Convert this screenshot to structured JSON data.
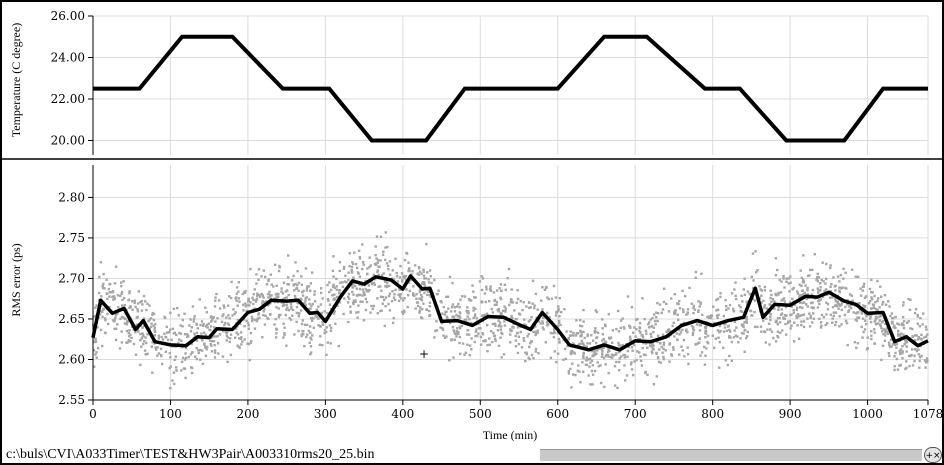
{
  "status_bar": {
    "file_path": "c:\\buls\\CVI\\A033Timer\\TEST&HW3Pair\\A003310rms20_25.bin"
  },
  "zoom_button": {
    "icon": "zoom-icon",
    "label": "+×"
  },
  "chart_data": [
    {
      "type": "line",
      "ylabel": "Temperature (C degree)",
      "ylim": [
        19.3,
        26.0
      ],
      "yticks": [
        "26.00",
        "24.00",
        "22.00",
        "20.00"
      ],
      "grid": true,
      "series": [
        {
          "values_x": [
            0,
            60,
            115,
            180,
            245,
            305,
            360,
            430,
            480,
            600,
            660,
            715,
            790,
            835,
            895,
            970,
            1020,
            1078
          ],
          "values_y": [
            22.5,
            22.5,
            25.0,
            25.0,
            22.5,
            22.5,
            20.0,
            20.0,
            22.5,
            22.5,
            25.0,
            25.0,
            22.5,
            22.5,
            20.0,
            20.0,
            22.5,
            22.5
          ]
        }
      ]
    },
    {
      "type": "scatter",
      "xlabel": "Time (min)",
      "ylabel": "RMS error (ps)",
      "xlim": [
        0,
        1078
      ],
      "ylim": [
        2.55,
        2.84
      ],
      "xticks": [
        "0",
        "100",
        "200",
        "300",
        "400",
        "500",
        "600",
        "700",
        "800",
        "900",
        "1000",
        "1078"
      ],
      "yticks": [
        "2.80",
        "2.75",
        "2.70",
        "2.65",
        "2.60",
        "2.55"
      ],
      "grid": true,
      "series": [
        {
          "name": "",
          "style": "mean-line",
          "values_x": [
            0,
            10,
            25,
            40,
            55,
            65,
            80,
            100,
            120,
            135,
            150,
            160,
            180,
            200,
            215,
            230,
            250,
            265,
            280,
            290,
            300,
            320,
            335,
            350,
            365,
            385,
            400,
            410,
            425,
            435,
            450,
            470,
            490,
            510,
            530,
            550,
            565,
            580,
            600,
            615,
            640,
            660,
            680,
            700,
            720,
            740,
            760,
            780,
            800,
            820,
            840,
            855,
            865,
            880,
            900,
            920,
            935,
            950,
            970,
            985,
            1000,
            1020,
            1035,
            1050,
            1065,
            1078
          ],
          "values_y": [
            2.63,
            2.67,
            2.66,
            2.66,
            2.64,
            2.645,
            2.625,
            2.615,
            2.62,
            2.625,
            2.63,
            2.635,
            2.64,
            2.655,
            2.665,
            2.67,
            2.675,
            2.67,
            2.66,
            2.655,
            2.65,
            2.675,
            2.7,
            2.69,
            2.705,
            2.695,
            2.69,
            2.7,
            2.69,
            2.685,
            2.65,
            2.645,
            2.645,
            2.65,
            2.655,
            2.64,
            2.64,
            2.655,
            2.64,
            2.615,
            2.615,
            2.615,
            2.615,
            2.62,
            2.625,
            2.625,
            2.645,
            2.645,
            2.645,
            2.645,
            2.655,
            2.685,
            2.655,
            2.665,
            2.67,
            2.675,
            2.68,
            2.68,
            2.675,
            2.665,
            2.66,
            2.655,
            2.625,
            2.625,
            2.62,
            2.62
          ]
        }
      ],
      "scatter_note_colors": {
        "points": "#a6a6a6",
        "line": "#000000"
      },
      "annotations": [
        "+"
      ]
    }
  ],
  "colors": {
    "scatter": "#a6a6a6",
    "line": "#000000",
    "grid": "#dcdcdc"
  }
}
